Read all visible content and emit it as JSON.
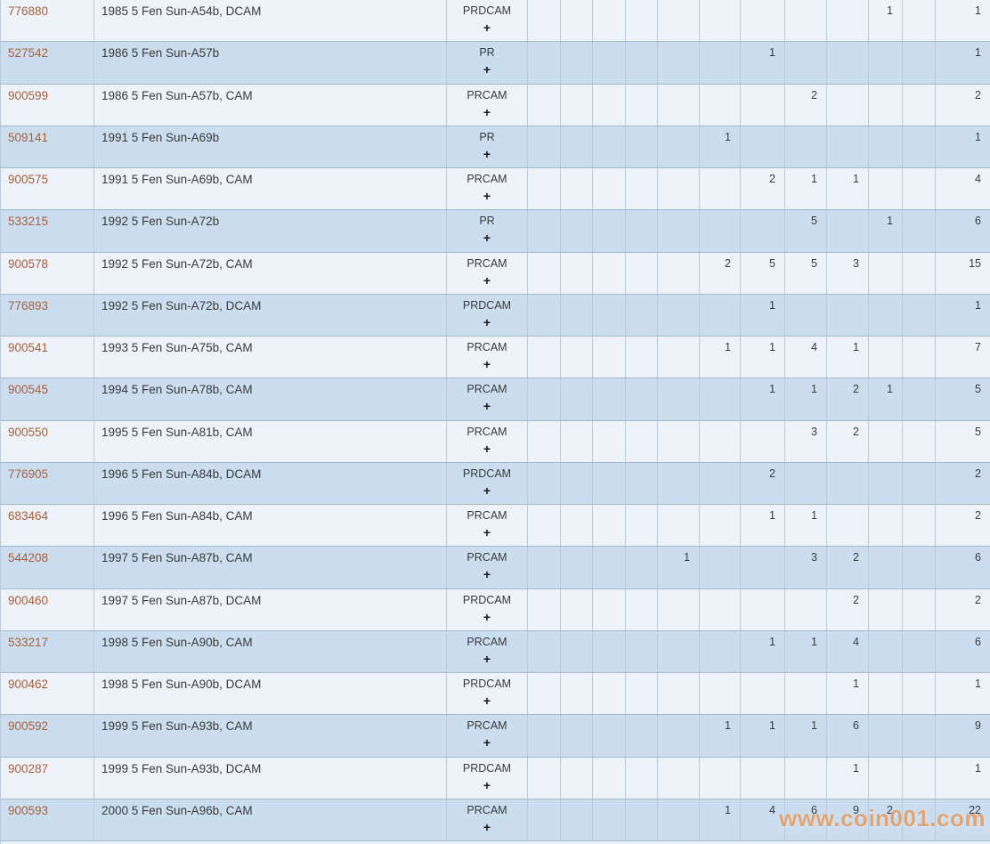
{
  "watermark": {
    "text": "www.coin001.com"
  },
  "colors": {
    "row_light": "#eef3f9",
    "row_dark": "#cadeef",
    "border_v": "#b9cbdc",
    "border_h": "#a3b9cc",
    "id_link": "#a9613c",
    "text": "#3a3a3c",
    "plus": "#1a1a1a",
    "watermark": "#e89450"
  },
  "table": {
    "plus_symbol": "+",
    "rows": [
      {
        "id": "776880",
        "description": "1985 5 Fen Sun-A54b, DCAM",
        "grade": "PRDCAM",
        "values": [
          "",
          "",
          "",
          "",
          "",
          "",
          "",
          "",
          "",
          "1",
          ""
        ],
        "total": "1"
      },
      {
        "id": "527542",
        "description": "1986 5 Fen Sun-A57b",
        "grade": "PR",
        "values": [
          "",
          "",
          "",
          "",
          "",
          "",
          "1",
          "",
          "",
          "",
          ""
        ],
        "total": "1"
      },
      {
        "id": "900599",
        "description": "1986 5 Fen Sun-A57b, CAM",
        "grade": "PRCAM",
        "values": [
          "",
          "",
          "",
          "",
          "",
          "",
          "",
          "2",
          "",
          "",
          ""
        ],
        "total": "2"
      },
      {
        "id": "509141",
        "description": "1991 5 Fen Sun-A69b",
        "grade": "PR",
        "values": [
          "",
          "",
          "",
          "",
          "",
          "1",
          "",
          "",
          "",
          "",
          ""
        ],
        "total": "1"
      },
      {
        "id": "900575",
        "description": "1991 5 Fen Sun-A69b, CAM",
        "grade": "PRCAM",
        "values": [
          "",
          "",
          "",
          "",
          "",
          "",
          "2",
          "1",
          "1",
          "",
          ""
        ],
        "total": "4"
      },
      {
        "id": "533215",
        "description": "1992 5 Fen Sun-A72b",
        "grade": "PR",
        "values": [
          "",
          "",
          "",
          "",
          "",
          "",
          "",
          "5",
          "",
          "1",
          ""
        ],
        "total": "6"
      },
      {
        "id": "900578",
        "description": "1992 5 Fen Sun-A72b, CAM",
        "grade": "PRCAM",
        "values": [
          "",
          "",
          "",
          "",
          "",
          "2",
          "5",
          "5",
          "3",
          "",
          ""
        ],
        "total": "15"
      },
      {
        "id": "776893",
        "description": "1992 5 Fen Sun-A72b, DCAM",
        "grade": "PRDCAM",
        "values": [
          "",
          "",
          "",
          "",
          "",
          "",
          "1",
          "",
          "",
          "",
          ""
        ],
        "total": "1"
      },
      {
        "id": "900541",
        "description": "1993 5 Fen Sun-A75b, CAM",
        "grade": "PRCAM",
        "values": [
          "",
          "",
          "",
          "",
          "",
          "1",
          "1",
          "4",
          "1",
          "",
          ""
        ],
        "total": "7"
      },
      {
        "id": "900545",
        "description": "1994 5 Fen Sun-A78b, CAM",
        "grade": "PRCAM",
        "values": [
          "",
          "",
          "",
          "",
          "",
          "",
          "1",
          "1",
          "2",
          "1",
          ""
        ],
        "total": "5"
      },
      {
        "id": "900550",
        "description": "1995 5 Fen Sun-A81b, CAM",
        "grade": "PRCAM",
        "values": [
          "",
          "",
          "",
          "",
          "",
          "",
          "",
          "3",
          "2",
          "",
          ""
        ],
        "total": "5"
      },
      {
        "id": "776905",
        "description": "1996 5 Fen Sun-A84b, DCAM",
        "grade": "PRDCAM",
        "values": [
          "",
          "",
          "",
          "",
          "",
          "",
          "2",
          "",
          "",
          "",
          ""
        ],
        "total": "2"
      },
      {
        "id": "683464",
        "description": "1996 5 Fen Sun-A84b, CAM",
        "grade": "PRCAM",
        "values": [
          "",
          "",
          "",
          "",
          "",
          "",
          "1",
          "1",
          "",
          "",
          ""
        ],
        "total": "2"
      },
      {
        "id": "544208",
        "description": "1997 5 Fen Sun-A87b, CAM",
        "grade": "PRCAM",
        "values": [
          "",
          "",
          "",
          "",
          "1",
          "",
          "",
          "3",
          "2",
          "",
          ""
        ],
        "total": "6"
      },
      {
        "id": "900460",
        "description": "1997 5 Fen Sun-A87b, DCAM",
        "grade": "PRDCAM",
        "values": [
          "",
          "",
          "",
          "",
          "",
          "",
          "",
          "",
          "2",
          "",
          ""
        ],
        "total": "2"
      },
      {
        "id": "533217",
        "description": "1998 5 Fen Sun-A90b, CAM",
        "grade": "PRCAM",
        "values": [
          "",
          "",
          "",
          "",
          "",
          "",
          "1",
          "1",
          "4",
          "",
          ""
        ],
        "total": "6"
      },
      {
        "id": "900462",
        "description": "1998 5 Fen Sun-A90b, DCAM",
        "grade": "PRDCAM",
        "values": [
          "",
          "",
          "",
          "",
          "",
          "",
          "",
          "",
          "1",
          "",
          ""
        ],
        "total": "1"
      },
      {
        "id": "900592",
        "description": "1999 5 Fen Sun-A93b, CAM",
        "grade": "PRCAM",
        "values": [
          "",
          "",
          "",
          "",
          "",
          "1",
          "1",
          "1",
          "6",
          "",
          ""
        ],
        "total": "9"
      },
      {
        "id": "900287",
        "description": "1999 5 Fen Sun-A93b, DCAM",
        "grade": "PRDCAM",
        "values": [
          "",
          "",
          "",
          "",
          "",
          "",
          "",
          "",
          "1",
          "",
          ""
        ],
        "total": "1"
      },
      {
        "id": "900593",
        "description": "2000 5 Fen Sun-A96b, CAM",
        "grade": "PRCAM",
        "values": [
          "",
          "",
          "",
          "",
          "",
          "1",
          "4",
          "6",
          "9",
          "2",
          ""
        ],
        "total": "22"
      }
    ]
  }
}
